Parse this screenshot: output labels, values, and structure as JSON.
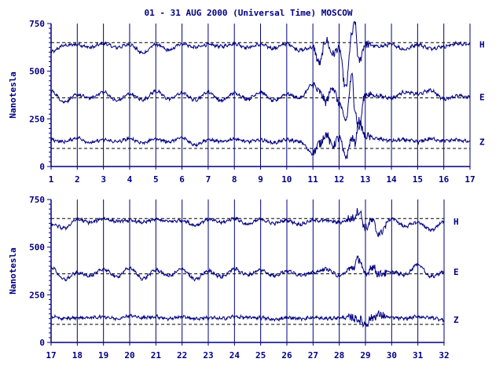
{
  "chart_data": {
    "type": "line",
    "title": "01 - 31 AUG 2000 (Universal Time) MOSCOW",
    "ylabel": "Nanotesla",
    "colors": {
      "trace": "#000080",
      "axis": "#000080",
      "baseline": "#000000"
    },
    "panels": [
      {
        "xlim": [
          1,
          17
        ],
        "x_ticks": [
          "1",
          "2",
          "3",
          "4",
          "5",
          "6",
          "7",
          "8",
          "9",
          "10",
          "11",
          "12",
          "13",
          "14",
          "15",
          "16",
          "17"
        ],
        "ylim": [
          0,
          750
        ],
        "y_ticks": [
          "0",
          "250",
          "500",
          "750"
        ],
        "baselines": [
          650,
          360,
          95
        ],
        "series": [
          {
            "name": "H",
            "x": [
              1,
              1.5,
              2,
              2.5,
              3,
              3.5,
              4,
              4.5,
              5,
              5.5,
              6,
              6.5,
              7,
              7.5,
              8,
              8.5,
              9,
              9.5,
              10,
              10.5,
              11,
              11.25,
              11.5,
              11.75,
              12,
              12.25,
              12.5,
              12.6,
              12.75,
              13,
              13.5,
              14,
              14.5,
              15,
              15.5,
              16,
              16.5,
              17
            ],
            "y": [
              600,
              635,
              640,
              625,
              645,
              625,
              640,
              595,
              640,
              610,
              645,
              625,
              640,
              630,
              645,
              625,
              640,
              620,
              645,
              610,
              625,
              540,
              665,
              590,
              620,
              410,
              700,
              760,
              550,
              640,
              630,
              640,
              615,
              640,
              620,
              630,
              645,
              640
            ]
          },
          {
            "name": "E",
            "x": [
              1,
              1.5,
              2,
              2.5,
              3,
              3.5,
              4,
              4.5,
              5,
              5.5,
              6,
              6.5,
              7,
              7.5,
              8,
              8.5,
              9,
              9.5,
              10,
              10.5,
              11,
              11.25,
              11.5,
              11.75,
              12,
              12.25,
              12.5,
              12.6,
              12.75,
              13,
              13.5,
              14,
              14.5,
              15,
              15.5,
              16,
              16.5,
              17
            ],
            "y": [
              395,
              340,
              375,
              360,
              390,
              345,
              380,
              350,
              395,
              355,
              385,
              350,
              390,
              345,
              385,
              355,
              390,
              345,
              380,
              360,
              430,
              390,
              340,
              420,
              330,
              240,
              480,
              300,
              200,
              380,
              370,
              360,
              390,
              380,
              400,
              355,
              370,
              365
            ]
          },
          {
            "name": "Z",
            "x": [
              1,
              1.5,
              2,
              2.5,
              3,
              3.5,
              4,
              4.5,
              5,
              5.5,
              6,
              6.5,
              7,
              7.5,
              8,
              8.5,
              9,
              9.5,
              10,
              10.5,
              11,
              11.25,
              11.5,
              11.75,
              12,
              12.25,
              12.5,
              12.6,
              12.75,
              13,
              13.5,
              14,
              14.5,
              15,
              15.5,
              16,
              16.5,
              17
            ],
            "y": [
              140,
              130,
              150,
              125,
              140,
              130,
              145,
              125,
              145,
              130,
              150,
              115,
              140,
              130,
              145,
              130,
              140,
              125,
              140,
              130,
              70,
              120,
              170,
              110,
              150,
              50,
              150,
              120,
              240,
              160,
              145,
              135,
              140,
              130,
              145,
              135,
              140,
              130
            ]
          }
        ]
      },
      {
        "xlim": [
          17,
          32
        ],
        "x_ticks": [
          "17",
          "18",
          "19",
          "20",
          "21",
          "22",
          "23",
          "24",
          "25",
          "26",
          "27",
          "28",
          "29",
          "30",
          "31",
          "32"
        ],
        "ylim": [
          0,
          750
        ],
        "y_ticks": [
          "0",
          "250",
          "500",
          "750"
        ],
        "baselines": [
          650,
          360,
          95
        ],
        "series": [
          {
            "name": "H",
            "x": [
              17,
              17.5,
              18,
              18.5,
              19,
              19.5,
              20,
              20.5,
              21,
              21.5,
              22,
              22.5,
              23,
              23.5,
              24,
              24.5,
              25,
              25.5,
              26,
              26.5,
              27,
              27.5,
              28,
              28.5,
              28.75,
              29,
              29.25,
              29.5,
              30,
              30.5,
              31,
              31.5,
              32
            ],
            "y": [
              620,
              600,
              645,
              630,
              650,
              635,
              640,
              630,
              645,
              635,
              640,
              615,
              645,
              630,
              650,
              620,
              645,
              625,
              640,
              620,
              640,
              640,
              630,
              650,
              690,
              600,
              640,
              570,
              650,
              610,
              630,
              590,
              635
            ]
          },
          {
            "name": "E",
            "x": [
              17,
              17.5,
              18,
              18.5,
              19,
              19.5,
              20,
              20.5,
              21,
              21.5,
              22,
              22.5,
              23,
              23.5,
              24,
              24.5,
              25,
              25.5,
              26,
              26.5,
              27,
              27.5,
              28,
              28.5,
              28.75,
              29,
              29.25,
              29.5,
              30,
              30.5,
              31,
              31.5,
              32
            ],
            "y": [
              395,
              330,
              365,
              350,
              385,
              345,
              390,
              335,
              380,
              350,
              385,
              330,
              375,
              345,
              385,
              355,
              380,
              350,
              375,
              355,
              365,
              385,
              350,
              390,
              440,
              350,
              400,
              360,
              370,
              355,
              410,
              345,
              370
            ]
          },
          {
            "name": "Z",
            "x": [
              17,
              17.5,
              18,
              18.5,
              19,
              19.5,
              20,
              20.5,
              21,
              21.5,
              22,
              22.5,
              23,
              23.5,
              24,
              24.5,
              25,
              25.5,
              26,
              26.5,
              27,
              27.5,
              28,
              28.5,
              28.75,
              29,
              29.25,
              29.5,
              30,
              30.5,
              31,
              31.5,
              32
            ],
            "y": [
              135,
              125,
              130,
              130,
              135,
              125,
              140,
              130,
              135,
              125,
              135,
              125,
              130,
              125,
              135,
              130,
              130,
              120,
              130,
              125,
              130,
              125,
              130,
              130,
              120,
              95,
              130,
              145,
              130,
              125,
              135,
              130,
              120
            ]
          }
        ]
      }
    ]
  }
}
